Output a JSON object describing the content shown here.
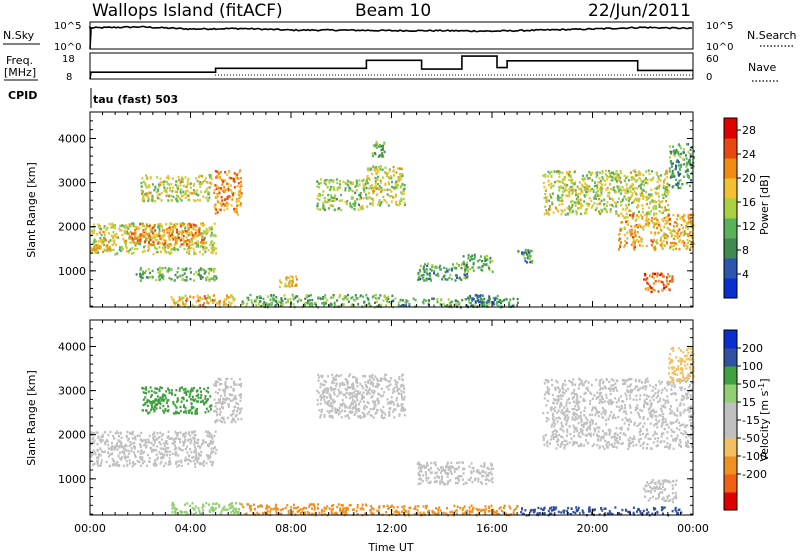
{
  "header": {
    "site": "Wallops Island (fitACF)",
    "beam": "Beam 10",
    "date": "22/Jun/2011"
  },
  "top_panels": {
    "nsky_label": "N.Sky",
    "nsearch_label": "N.Search",
    "noise_ticks": [
      "10^5",
      "10^0"
    ],
    "freq_label": "Freq.",
    "freq_unit": "[MHz]",
    "freq_ticks": [
      "18",
      "8"
    ],
    "nave_label": "Nave",
    "nave_ticks": [
      "60",
      "0"
    ],
    "cpid_label": "CPID",
    "cpid_text": "tau (fast) 503"
  },
  "colors": {
    "power": [
      "#0a2fd0",
      "#2c55b0",
      "#3f8a4e",
      "#58b25a",
      "#a8d040",
      "#f2c030",
      "#f08a10",
      "#e84810",
      "#e00000"
    ],
    "velocity": [
      "#e00000",
      "#f06010",
      "#f09020",
      "#f2c060",
      "#c0c0c0",
      "#c0c0c0",
      "#90d070",
      "#40a040",
      "#3050a0",
      "#0a2fd0"
    ]
  },
  "chart_data": [
    {
      "type": "line",
      "name": "noise",
      "x": [
        0,
        2,
        4,
        6,
        8,
        10,
        12,
        14,
        16,
        18,
        20,
        22,
        24
      ],
      "series": [
        {
          "values": [
            3.9,
            4.1,
            3.7,
            3.8,
            3.5,
            3.5,
            3.4,
            3.4,
            3.3,
            3.5,
            3.7,
            4.0,
            3.8
          ]
        }
      ],
      "ylim": [
        0,
        5
      ],
      "xlim": [
        0,
        24
      ]
    },
    {
      "type": "line",
      "name": "frequency",
      "x": [
        0,
        5.0,
        5.0,
        11.0,
        11.0,
        13.2,
        13.2,
        14.8,
        14.8,
        16.2,
        16.2,
        16.6,
        16.6,
        21.8,
        21.8,
        24
      ],
      "series": [
        {
          "name": "Freq.",
          "values": [
            10.6,
            10.6,
            12.1,
            12.1,
            15.2,
            15.2,
            11.8,
            11.8,
            16.8,
            16.8,
            12.4,
            12.4,
            15.0,
            15.0,
            11.3,
            11.3
          ]
        }
      ],
      "ylim": [
        8,
        18
      ],
      "xlim": [
        0,
        24
      ]
    },
    {
      "type": "heatmap",
      "name": "power",
      "xlabel": "",
      "ylabel": "Slant Range [km]",
      "xlim": [
        0,
        24
      ],
      "ylim": [
        180,
        4600
      ],
      "yticks": [
        1000,
        2000,
        3000,
        4000
      ],
      "colorbar": {
        "label": "Power [dB]",
        "ticks": [
          4,
          8,
          12,
          16,
          20,
          24,
          28
        ],
        "range": [
          0,
          30
        ]
      },
      "regions": [
        {
          "x": [
            0,
            5
          ],
          "y": [
            1400,
            2100
          ],
          "value": 16
        },
        {
          "x": [
            0,
            0.8
          ],
          "y": [
            1450,
            1620
          ],
          "value": 19
        },
        {
          "x": [
            1.5,
            4.5
          ],
          "y": [
            1600,
            2100
          ],
          "value": 22
        },
        {
          "x": [
            2,
            4.8
          ],
          "y": [
            2600,
            3200
          ],
          "value": 16
        },
        {
          "x": [
            4.9,
            6
          ],
          "y": [
            2300,
            3300
          ],
          "value": 22
        },
        {
          "x": [
            1.8,
            5
          ],
          "y": [
            800,
            1100
          ],
          "value": 12
        },
        {
          "x": [
            3.2,
            5.8
          ],
          "y": [
            200,
            480
          ],
          "value": 20
        },
        {
          "x": [
            6,
            12
          ],
          "y": [
            200,
            480
          ],
          "value": 12
        },
        {
          "x": [
            12,
            17
          ],
          "y": [
            200,
            400
          ],
          "value": 10
        },
        {
          "x": [
            7.5,
            8.2
          ],
          "y": [
            650,
            900
          ],
          "value": 20
        },
        {
          "x": [
            9,
            11
          ],
          "y": [
            2400,
            3100
          ],
          "value": 14
        },
        {
          "x": [
            11,
            12.5
          ],
          "y": [
            2500,
            3400
          ],
          "value": 16
        },
        {
          "x": [
            11.2,
            11.7
          ],
          "y": [
            3600,
            3950
          ],
          "value": 12
        },
        {
          "x": [
            13,
            15
          ],
          "y": [
            800,
            1200
          ],
          "value": 10
        },
        {
          "x": [
            14.8,
            16
          ],
          "y": [
            1000,
            1400
          ],
          "value": 12
        },
        {
          "x": [
            15,
            16.2
          ],
          "y": [
            200,
            480
          ],
          "value": 8
        },
        {
          "x": [
            17,
            17.6
          ],
          "y": [
            1200,
            1500
          ],
          "value": 10
        },
        {
          "x": [
            18,
            23
          ],
          "y": [
            2300,
            3300
          ],
          "value": 16
        },
        {
          "x": [
            21,
            24
          ],
          "y": [
            1500,
            2300
          ],
          "value": 20
        },
        {
          "x": [
            22,
            23.2
          ],
          "y": [
            550,
            1000
          ],
          "value": 24
        },
        {
          "x": [
            23,
            24
          ],
          "y": [
            2900,
            3900
          ],
          "value": 10
        }
      ]
    },
    {
      "type": "heatmap",
      "name": "velocity",
      "xlabel": "Time UT",
      "ylabel": "Slant Range [km]",
      "xlim": [
        0,
        24
      ],
      "ylim": [
        180,
        4600
      ],
      "xticks": [
        "00:00",
        "04:00",
        "08:00",
        "12:00",
        "16:00",
        "20:00",
        "00:00"
      ],
      "yticks": [
        1000,
        2000,
        3000,
        4000
      ],
      "colorbar": {
        "label": "Velocity [m s-1]",
        "ticks": [
          200,
          100,
          50,
          15,
          -15,
          -50,
          -100,
          -200
        ],
        "range": [
          -250,
          250
        ]
      },
      "regions": [
        {
          "x": [
            0,
            5
          ],
          "y": [
            1300,
            2100
          ],
          "value": 0
        },
        {
          "x": [
            2,
            4.8
          ],
          "y": [
            2500,
            3100
          ],
          "value": 60
        },
        {
          "x": [
            4.9,
            6
          ],
          "y": [
            2300,
            3300
          ],
          "value": 0
        },
        {
          "x": [
            3.2,
            6
          ],
          "y": [
            220,
            480
          ],
          "value": 40
        },
        {
          "x": [
            6,
            11
          ],
          "y": [
            200,
            450
          ],
          "value": -60
        },
        {
          "x": [
            11,
            17
          ],
          "y": [
            200,
            420
          ],
          "value": -70
        },
        {
          "x": [
            17,
            23.5
          ],
          "y": [
            200,
            380
          ],
          "value": 150
        },
        {
          "x": [
            9,
            12.5
          ],
          "y": [
            2400,
            3400
          ],
          "value": 0
        },
        {
          "x": [
            18,
            24
          ],
          "y": [
            1700,
            3300
          ],
          "value": 0
        },
        {
          "x": [
            22,
            23.3
          ],
          "y": [
            500,
            1000
          ],
          "value": 0
        },
        {
          "x": [
            23,
            24
          ],
          "y": [
            3200,
            4000
          ],
          "value": -40
        },
        {
          "x": [
            13,
            16
          ],
          "y": [
            900,
            1400
          ],
          "value": 0
        }
      ]
    }
  ]
}
